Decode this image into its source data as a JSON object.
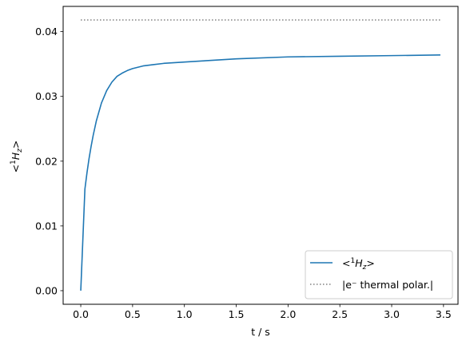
{
  "chart_data": {
    "type": "line",
    "title": "",
    "xlabel": "t / s",
    "ylabel_parts": {
      "open": "<",
      "sup": "1",
      "base": "H",
      "sub": "z",
      "close": ">"
    },
    "xlim": [
      -0.17,
      3.64
    ],
    "ylim": [
      -0.0021,
      0.0439
    ],
    "xticks": [
      0.0,
      0.5,
      1.0,
      1.5,
      2.0,
      2.5,
      3.0,
      3.5
    ],
    "xtick_labels": [
      "0.0",
      "0.5",
      "1.0",
      "1.5",
      "2.0",
      "2.5",
      "3.0",
      "3.5"
    ],
    "yticks": [
      0.0,
      0.01,
      0.02,
      0.03,
      0.04
    ],
    "ytick_labels": [
      "0.00",
      "0.01",
      "0.02",
      "0.03",
      "0.04"
    ],
    "grid": false,
    "legend_position": "lower-right",
    "series": [
      {
        "name_parts": {
          "open": "<",
          "sup": "1",
          "base": "H",
          "sub": "z",
          "close": ">"
        },
        "style": "solid",
        "color": "#1f77b4",
        "x": [
          0.0,
          0.04,
          0.06,
          0.08,
          0.1,
          0.12,
          0.15,
          0.2,
          0.25,
          0.3,
          0.35,
          0.4,
          0.45,
          0.5,
          0.6,
          0.7,
          0.8,
          1.0,
          1.2,
          1.5,
          2.0,
          2.5,
          3.0,
          3.47
        ],
        "y": [
          0.0,
          0.0157,
          0.0182,
          0.0204,
          0.0223,
          0.024,
          0.0262,
          0.029,
          0.0309,
          0.0322,
          0.0331,
          0.0336,
          0.034,
          0.0343,
          0.0347,
          0.0349,
          0.0351,
          0.0353,
          0.0355,
          0.0358,
          0.0361,
          0.0362,
          0.0363,
          0.0364
        ]
      },
      {
        "name": "|e⁻ thermal polar.|",
        "style": "dotted",
        "color": "#808080",
        "x": [
          0.0,
          3.47
        ],
        "y": [
          0.0418,
          0.0418
        ]
      }
    ]
  }
}
